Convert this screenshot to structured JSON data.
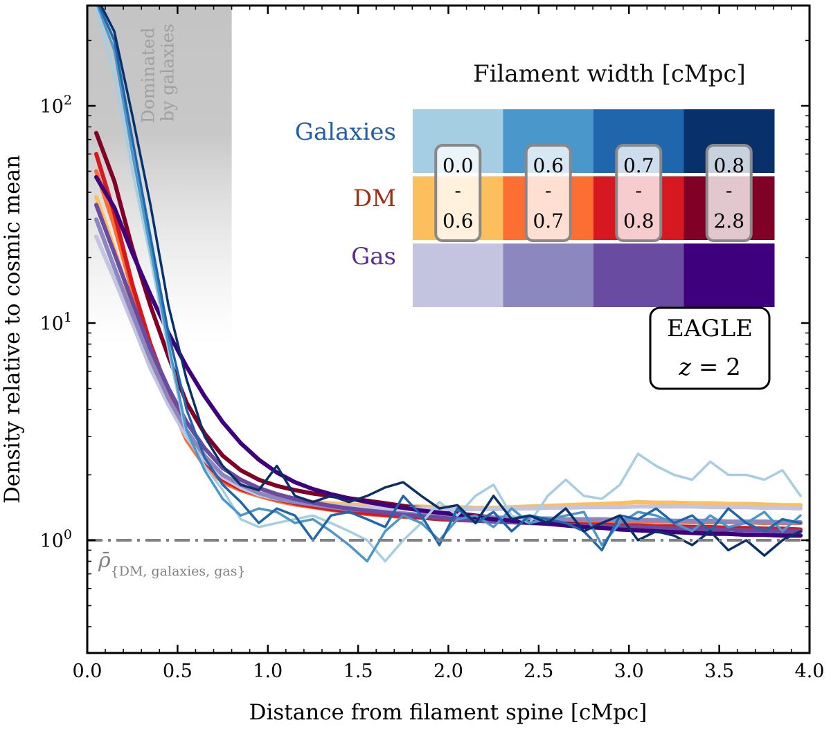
{
  "chart_data": {
    "type": "line",
    "title": "",
    "xlabel": "Distance from filament spine [cMpc]",
    "ylabel": "Density relative to cosmic mean",
    "xlim": [
      0.0,
      4.0
    ],
    "ylim": [
      0.3,
      300
    ],
    "yscale": "log",
    "x_ticks": [
      0.0,
      0.5,
      1.0,
      1.5,
      2.0,
      2.5,
      3.0,
      3.5,
      4.0
    ],
    "x_tick_labels": [
      "0.0",
      "0.5",
      "1.0",
      "1.5",
      "2.0",
      "2.5",
      "3.0",
      "3.5",
      "4.0"
    ],
    "y_ticks": [
      1,
      10,
      100
    ],
    "y_tick_bases": [
      "10",
      "10",
      "10"
    ],
    "y_tick_exponents": [
      "0",
      "1",
      "2"
    ],
    "shaded_region": {
      "x": [
        0.0,
        0.8
      ],
      "label": [
        "Dominated",
        "by galaxies"
      ],
      "color": "#c4c4c4"
    },
    "reference_line": {
      "y": 1.0,
      "style": "dash-dot",
      "color": "#808080",
      "label": "ρ̄",
      "label_sub": "{DM, galaxies, gas}"
    },
    "legend": {
      "title": "Filament width [cMpc]",
      "rows": [
        "Galaxies",
        "DM",
        "Gas"
      ],
      "row_colors": [
        "#2060a8",
        "#a03010",
        "#5a2d91"
      ],
      "bins": [
        {
          "top": "0.0",
          "mid": "-",
          "bottom": "0.6"
        },
        {
          "top": "0.6",
          "mid": "-",
          "bottom": "0.7"
        },
        {
          "top": "0.7",
          "mid": "-",
          "bottom": "0.8"
        },
        {
          "top": "0.8",
          "mid": "-",
          "bottom": "2.8"
        }
      ],
      "colors": {
        "Galaxies": [
          "#a6cee3",
          "#4a98cb",
          "#2066ac",
          "#08306b"
        ],
        "DM": [
          "#fdbe5e",
          "#fd6e32",
          "#d61820",
          "#800026"
        ],
        "Gas": [
          "#c5c4e0",
          "#8d87bf",
          "#6a4ba2",
          "#3f007d"
        ]
      }
    },
    "annotation": {
      "line1": "EAGLE",
      "line2_var": "z",
      "line2_rest": " = 2"
    },
    "x": [
      0.05,
      0.15,
      0.25,
      0.35,
      0.45,
      0.55,
      0.65,
      0.75,
      0.85,
      0.95,
      1.05,
      1.15,
      1.25,
      1.35,
      1.45,
      1.55,
      1.65,
      1.75,
      1.85,
      1.95,
      2.05,
      2.15,
      2.25,
      2.35,
      2.45,
      2.55,
      2.65,
      2.75,
      2.85,
      2.95,
      3.05,
      3.15,
      3.25,
      3.35,
      3.45,
      3.55,
      3.65,
      3.75,
      3.85,
      3.95
    ],
    "series": [
      {
        "name": "Galaxies 0.0-0.6",
        "group": "Galaxies",
        "bin": 0,
        "width": 3.5,
        "values": [
          280,
          140,
          50,
          20,
          7.5,
          3.0,
          2.2,
          1.7,
          1.25,
          1.15,
          1.2,
          1.25,
          1.3,
          1.2,
          1.1,
          1.0,
          0.8,
          1.0,
          1.2,
          1.5,
          1.3,
          1.6,
          1.8,
          1.3,
          1.2,
          1.6,
          1.9,
          1.6,
          1.55,
          1.8,
          2.5,
          2.2,
          2.0,
          1.9,
          2.3,
          2.0,
          2.0,
          1.9,
          2.1,
          1.6
        ]
      },
      {
        "name": "Galaxies 0.6-0.7",
        "group": "Galaxies",
        "bin": 1,
        "width": 3.5,
        "values": [
          300,
          180,
          60,
          22,
          8.0,
          3.2,
          2.1,
          1.55,
          1.3,
          1.4,
          1.35,
          1.2,
          1.25,
          1.1,
          0.95,
          0.8,
          1.1,
          1.3,
          1.2,
          1.0,
          1.25,
          1.3,
          1.15,
          1.4,
          1.2,
          1.25,
          1.3,
          1.35,
          0.95,
          1.2,
          1.35,
          1.3,
          1.2,
          1.1,
          1.3,
          1.15,
          1.2,
          1.35,
          1.1,
          1.3
        ]
      },
      {
        "name": "Galaxies 0.7-0.8",
        "group": "Galaxies",
        "bin": 2,
        "width": 3.5,
        "values": [
          310,
          200,
          70,
          25,
          9.0,
          4.0,
          2.4,
          1.8,
          1.5,
          1.2,
          1.4,
          1.3,
          1.0,
          1.3,
          1.35,
          1.25,
          1.15,
          1.6,
          1.3,
          0.95,
          1.4,
          1.2,
          1.35,
          1.1,
          1.3,
          1.25,
          1.2,
          1.1,
          0.9,
          1.3,
          1.25,
          1.4,
          1.2,
          1.3,
          1.1,
          1.4,
          1.2,
          1.1,
          1.25,
          1.2
        ]
      },
      {
        "name": "Galaxies 0.8-2.8",
        "group": "Galaxies",
        "bin": 3,
        "width": 3.5,
        "values": [
          320,
          220,
          90,
          35,
          12,
          5.5,
          3.0,
          2.2,
          1.8,
          1.7,
          2.2,
          1.6,
          1.5,
          1.6,
          1.5,
          1.6,
          1.75,
          1.85,
          1.6,
          1.4,
          1.45,
          1.2,
          1.6,
          1.25,
          1.3,
          1.2,
          1.4,
          1.1,
          1.2,
          1.3,
          1.0,
          1.1,
          1.05,
          0.95,
          1.1,
          0.9,
          1.0,
          0.85,
          1.0,
          1.1
        ]
      },
      {
        "name": "DM 0.0-0.6",
        "group": "DM",
        "bin": 0,
        "width": 6,
        "values": [
          38,
          22,
          12,
          7.0,
          4.4,
          3.0,
          2.3,
          1.95,
          1.75,
          1.65,
          1.58,
          1.54,
          1.5,
          1.48,
          1.46,
          1.45,
          1.44,
          1.43,
          1.43,
          1.42,
          1.42,
          1.41,
          1.41,
          1.42,
          1.43,
          1.44,
          1.45,
          1.46,
          1.47,
          1.48,
          1.5,
          1.49,
          1.49,
          1.48,
          1.48,
          1.47,
          1.47,
          1.46,
          1.45,
          1.45
        ]
      },
      {
        "name": "DM 0.6-0.7",
        "group": "DM",
        "bin": 1,
        "width": 6,
        "values": [
          50,
          28,
          14,
          7.5,
          4.5,
          2.9,
          2.2,
          1.85,
          1.7,
          1.6,
          1.52,
          1.46,
          1.42,
          1.38,
          1.35,
          1.32,
          1.3,
          1.28,
          1.27,
          1.26,
          1.25,
          1.24,
          1.23,
          1.23,
          1.22,
          1.22,
          1.22,
          1.22,
          1.22,
          1.22,
          1.22,
          1.22,
          1.22,
          1.21,
          1.21,
          1.21,
          1.21,
          1.2,
          1.2,
          1.2
        ]
      },
      {
        "name": "DM 0.7-0.8",
        "group": "DM",
        "bin": 2,
        "width": 6,
        "values": [
          60,
          32,
          15,
          8.0,
          4.8,
          3.1,
          2.3,
          1.9,
          1.72,
          1.62,
          1.54,
          1.48,
          1.43,
          1.39,
          1.36,
          1.33,
          1.31,
          1.29,
          1.27,
          1.25,
          1.24,
          1.23,
          1.22,
          1.21,
          1.2,
          1.2,
          1.19,
          1.18,
          1.18,
          1.17,
          1.17,
          1.16,
          1.16,
          1.15,
          1.15,
          1.14,
          1.14,
          1.13,
          1.13,
          1.12
        ]
      },
      {
        "name": "DM 0.8-2.8",
        "group": "DM",
        "bin": 3,
        "width": 6,
        "values": [
          75,
          45,
          22,
          12,
          7.0,
          4.3,
          3.1,
          2.45,
          2.1,
          1.9,
          1.78,
          1.7,
          1.64,
          1.6,
          1.56,
          1.52,
          1.48,
          1.44,
          1.4,
          1.36,
          1.33,
          1.3,
          1.27,
          1.25,
          1.23,
          1.21,
          1.19,
          1.17,
          1.15,
          1.13,
          1.12,
          1.11,
          1.1,
          1.09,
          1.08,
          1.07,
          1.06,
          1.06,
          1.05,
          1.05
        ]
      },
      {
        "name": "Gas 0.0-0.6",
        "group": "Gas",
        "bin": 0,
        "width": 6,
        "values": [
          25,
          16,
          10,
          6.2,
          4.2,
          3.0,
          2.35,
          1.95,
          1.75,
          1.62,
          1.55,
          1.5,
          1.47,
          1.45,
          1.43,
          1.42,
          1.41,
          1.4,
          1.4,
          1.39,
          1.39,
          1.39,
          1.39,
          1.4,
          1.4,
          1.41,
          1.41,
          1.42,
          1.42,
          1.42,
          1.43,
          1.43,
          1.43,
          1.43,
          1.42,
          1.42,
          1.42,
          1.41,
          1.41,
          1.4
        ]
      },
      {
        "name": "Gas 0.6-0.7",
        "group": "Gas",
        "bin": 1,
        "width": 6,
        "values": [
          30,
          18,
          11,
          6.8,
          4.5,
          3.2,
          2.45,
          2.0,
          1.8,
          1.65,
          1.56,
          1.5,
          1.46,
          1.42,
          1.39,
          1.37,
          1.35,
          1.33,
          1.31,
          1.3,
          1.29,
          1.28,
          1.27,
          1.27,
          1.26,
          1.26,
          1.25,
          1.25,
          1.25,
          1.24,
          1.24,
          1.24,
          1.23,
          1.23,
          1.23,
          1.22,
          1.22,
          1.22,
          1.21,
          1.21
        ]
      },
      {
        "name": "Gas 0.7-0.8",
        "group": "Gas",
        "bin": 2,
        "width": 6,
        "values": [
          35,
          21,
          12.5,
          7.6,
          5.0,
          3.5,
          2.65,
          2.15,
          1.9,
          1.74,
          1.63,
          1.55,
          1.49,
          1.44,
          1.4,
          1.37,
          1.34,
          1.31,
          1.29,
          1.27,
          1.25,
          1.23,
          1.22,
          1.21,
          1.2,
          1.19,
          1.18,
          1.17,
          1.16,
          1.15,
          1.15,
          1.14,
          1.13,
          1.13,
          1.12,
          1.12,
          1.11,
          1.11,
          1.1,
          1.1
        ]
      },
      {
        "name": "Gas 0.8-2.8",
        "group": "Gas",
        "bin": 3,
        "width": 6,
        "values": [
          47,
          34,
          21,
          13.5,
          9.0,
          6.3,
          4.6,
          3.5,
          2.8,
          2.35,
          2.05,
          1.85,
          1.72,
          1.63,
          1.56,
          1.5,
          1.45,
          1.41,
          1.37,
          1.34,
          1.31,
          1.28,
          1.25,
          1.23,
          1.21,
          1.19,
          1.17,
          1.15,
          1.14,
          1.12,
          1.11,
          1.1,
          1.09,
          1.08,
          1.07,
          1.07,
          1.06,
          1.06,
          1.05,
          1.05
        ]
      }
    ]
  }
}
